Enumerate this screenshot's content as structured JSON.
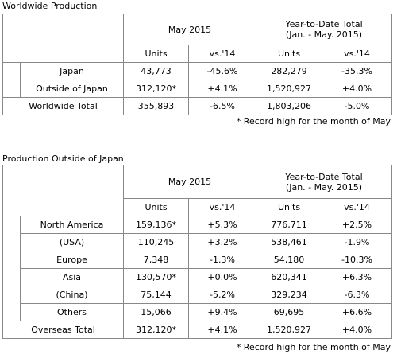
{
  "worldwide": {
    "title": "Worldwide Production",
    "month": "May 2015",
    "ytd": "Year-to-Date Total",
    "ytd_range": "(Jan. - May. 2015)",
    "columns": [
      "Units",
      "vs.'14",
      "Units",
      "vs.'14"
    ],
    "rows": [
      [
        "Japan",
        "43,773",
        "-45.6%",
        "282,279",
        "-35.3%"
      ],
      [
        "Outside of Japan",
        "312,120*",
        "+4.1%",
        "1,520,927",
        "+4.0%"
      ]
    ],
    "total": [
      "Worldwide Total",
      "355,893",
      "-6.5%",
      "1,803,206",
      "-5.0%"
    ],
    "note": "* Record high for the month of May"
  },
  "overseas": {
    "title": "Production Outside of Japan",
    "month": "May 2015",
    "ytd": "Year-to-Date Total",
    "ytd_range": "(Jan. - May. 2015)",
    "columns": [
      "Units",
      "vs.'14",
      "Units",
      "vs.'14"
    ],
    "rows": [
      [
        "North America",
        "159,136*",
        "+5.3%",
        "776,711",
        "+2.5%"
      ],
      [
        "(USA)",
        "110,245",
        "+3.2%",
        "538,461",
        "-1.9%"
      ],
      [
        "Europe",
        "7,348",
        "-1.3%",
        "54,180",
        "-10.3%"
      ],
      [
        "Asia",
        "130,570*",
        "+0.0%",
        "620,341",
        "+6.3%"
      ],
      [
        "(China)",
        "75,144",
        "-5.2%",
        "329,234",
        "-6.3%"
      ],
      [
        "Others",
        "15,066",
        "+9.4%",
        "69,695",
        "+6.6%"
      ]
    ],
    "total": [
      "Overseas Total",
      "312,120*",
      "+4.1%",
      "1,520,927",
      "+4.0%"
    ],
    "note": "* Record high for the month of May"
  }
}
